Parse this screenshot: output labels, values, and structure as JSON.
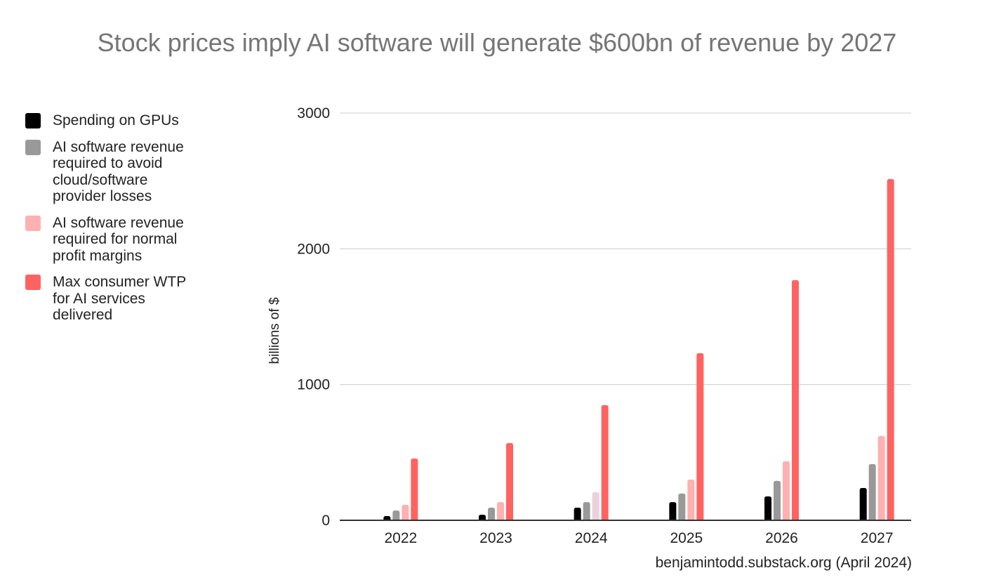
{
  "chart_data": {
    "type": "bar",
    "title": "Stock prices imply AI software will generate $600bn of revenue by 2027",
    "xlabel": "",
    "ylabel": "billions of $",
    "ylim": [
      0,
      3000
    ],
    "yticks": [
      "0",
      "1000",
      "2000",
      "3000"
    ],
    "grid": true,
    "legend_position": "left",
    "categories": [
      "2022",
      "2023",
      "2024",
      "2025",
      "2026",
      "2027"
    ],
    "series": [
      {
        "name": "Spending on GPUs",
        "color": "#000000",
        "values": [
          31,
          41,
          93,
          134,
          176,
          238
        ]
      },
      {
        "name": "AI software revenue required to avoid cloud/software provider losses",
        "color": "#999999",
        "values": [
          72,
          93,
          134,
          197,
          290,
          414
        ]
      },
      {
        "name": "AI software revenue required for normal profit margins",
        "color": "#ffb0b0",
        "values": [
          114,
          134,
          207,
          300,
          435,
          621
        ],
        "point_colors": {
          "2": "#ead1dc"
        }
      },
      {
        "name": "Max consumer WTP for AI services delivered",
        "color": "#ff6361",
        "values": [
          455,
          569,
          848,
          1231,
          1769,
          2514
        ]
      }
    ],
    "source": "benjamintodd.substack.org (April 2024)"
  },
  "legend": {
    "lines": [
      [
        "Spending on GPUs"
      ],
      [
        "AI software revenue",
        "required to avoid",
        "cloud/software",
        "provider losses"
      ],
      [
        "AI software revenue",
        "required for normal",
        "profit margins"
      ],
      [
        "Max consumer WTP",
        "for AI services",
        "delivered"
      ]
    ]
  }
}
